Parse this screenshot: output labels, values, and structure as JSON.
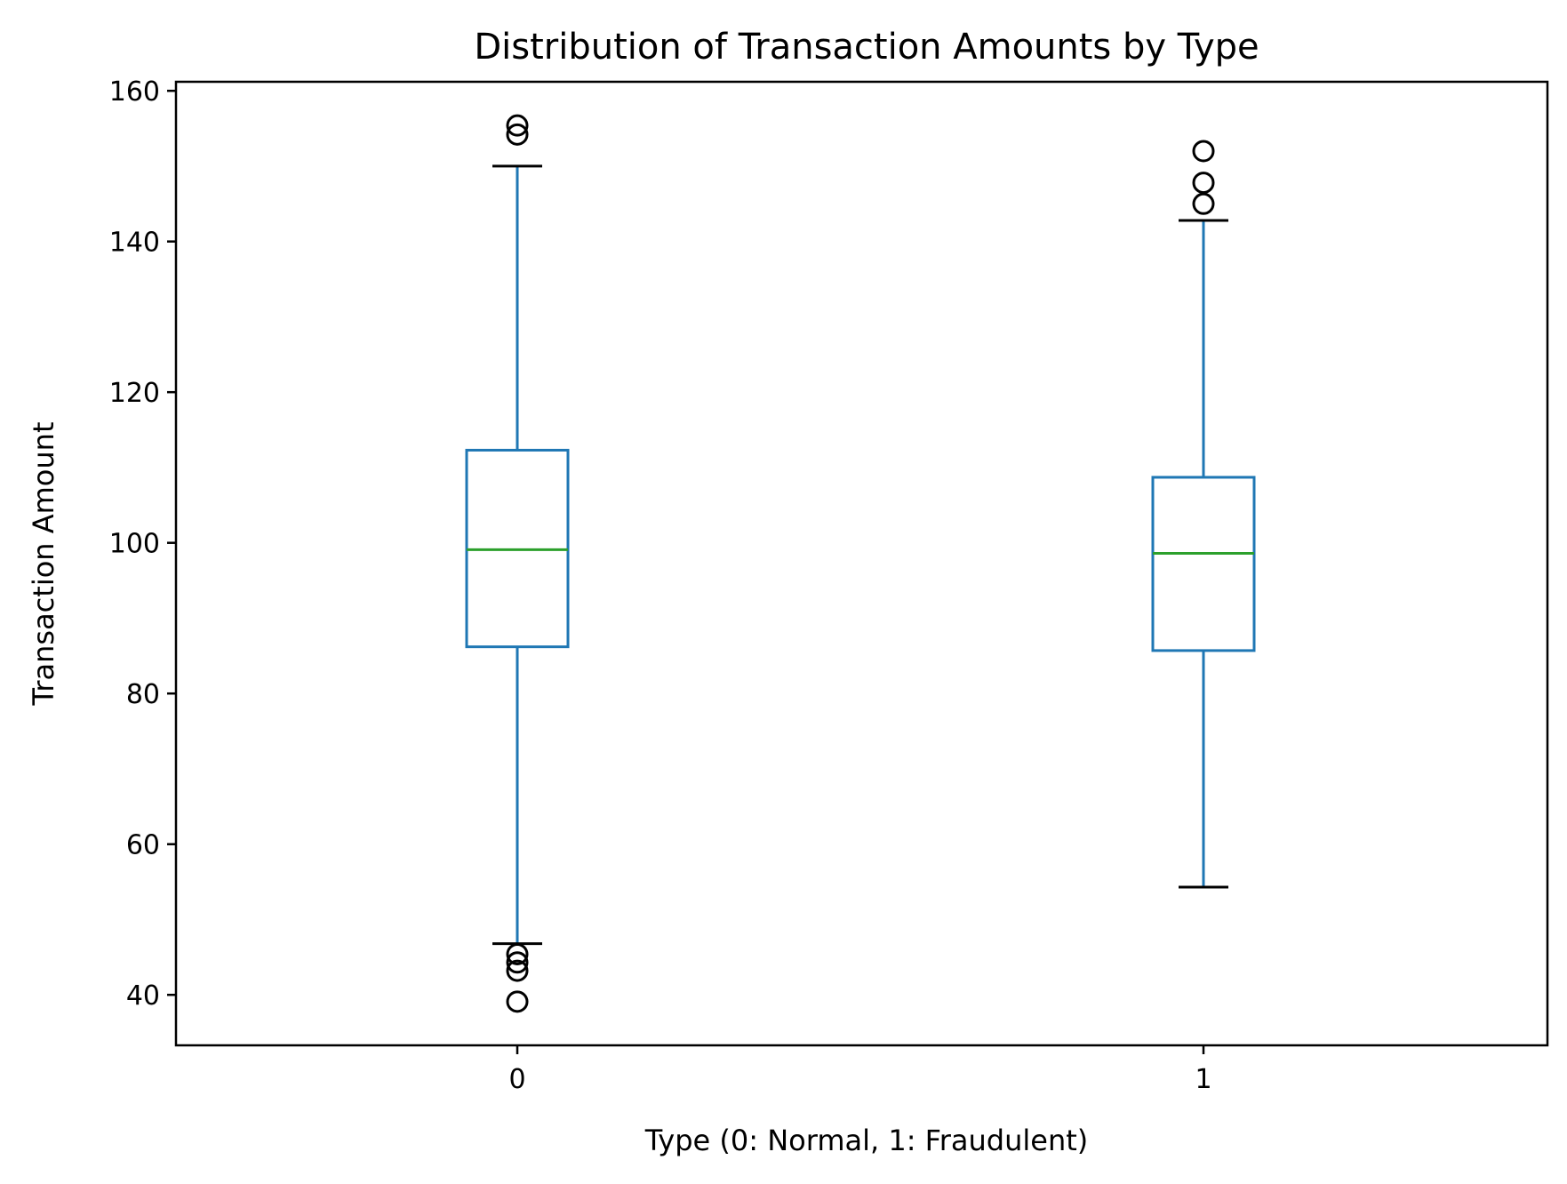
{
  "chart_data": {
    "type": "box",
    "title": "Distribution of Transaction Amounts by Type",
    "xlabel": "Type (0: Normal, 1: Fraudulent)",
    "ylabel": "Transaction Amount",
    "categories": [
      "0",
      "1"
    ],
    "ylim": [
      33.3,
      161.2
    ],
    "yticks": [
      40,
      60,
      80,
      100,
      120,
      140,
      160
    ],
    "grid": false,
    "boxes": [
      {
        "category": "0",
        "whisker_low": 46.8,
        "q1": 86.2,
        "median": 99.1,
        "q3": 112.3,
        "whisker_high": 150.0,
        "outliers": [
          155.4,
          154.2,
          45.4,
          44.3,
          43.2,
          39.1
        ]
      },
      {
        "category": "1",
        "whisker_low": 54.3,
        "q1": 85.7,
        "median": 98.6,
        "q3": 108.7,
        "whisker_high": 142.8,
        "outliers": [
          152.0,
          147.8,
          145.0
        ]
      }
    ],
    "colors": {
      "box": "#1f77b4",
      "median": "#2ca02c",
      "flier": "#000000",
      "cap": "#000000",
      "axes": "#000000"
    }
  }
}
